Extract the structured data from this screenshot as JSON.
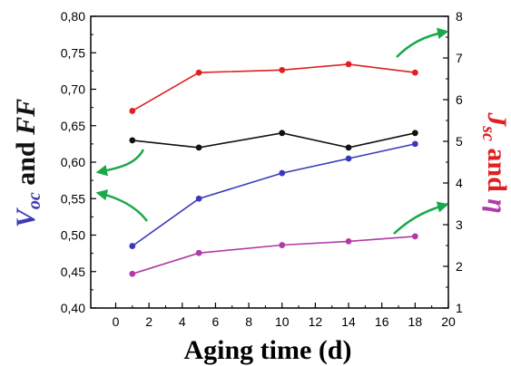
{
  "chart_data": {
    "type": "line",
    "xlabel": "Aging time (d)",
    "ylabel_left": {
      "part1": "V",
      "sub1": "oc",
      "middle": " and ",
      "part2": "FF"
    },
    "ylabel_right": {
      "part1": "J",
      "sub1": "sc",
      "middle": " and ",
      "part2": "η"
    },
    "x_ticks": [
      "0",
      "2",
      "4",
      "6",
      "8",
      "10",
      "12",
      "14",
      "16",
      "18",
      "20"
    ],
    "y_left_ticks": [
      "0,40",
      "0,45",
      "0,50",
      "0,55",
      "0,60",
      "0,65",
      "0,70",
      "0,75",
      "0,80"
    ],
    "y_right_ticks": [
      "1",
      "2",
      "3",
      "4",
      "5",
      "6",
      "7",
      "8"
    ],
    "xlim": [
      -1.5,
      20
    ],
    "ylim_left": [
      0.4,
      0.8
    ],
    "ylim_right": [
      1,
      8
    ],
    "series": [
      {
        "axis": "left",
        "color": "#3a3ab8",
        "x": [
          1,
          5,
          10,
          14,
          18
        ],
        "values": [
          0.485,
          0.55,
          0.585,
          0.605,
          0.625
        ]
      },
      {
        "axis": "left",
        "color": "#111111",
        "x": [
          1,
          5,
          10,
          14,
          18
        ],
        "values": [
          0.63,
          0.62,
          0.64,
          0.62,
          0.64
        ]
      },
      {
        "axis": "right",
        "color": "#e02020",
        "x": [
          1,
          5,
          10,
          14,
          18
        ],
        "values": [
          5.73,
          6.65,
          6.71,
          6.85,
          6.65
        ]
      },
      {
        "axis": "right",
        "color": "#b03aa8",
        "x": [
          1,
          5,
          10,
          14,
          18
        ],
        "values": [
          1.82,
          2.32,
          2.51,
          2.6,
          2.72
        ]
      }
    ],
    "arrows_color": "#1aa84a",
    "label_colors": {
      "left_v": "#3a3ab8",
      "left_ff": "#111111",
      "right_j": "#e02020",
      "right_eta": "#b03aa8"
    }
  }
}
